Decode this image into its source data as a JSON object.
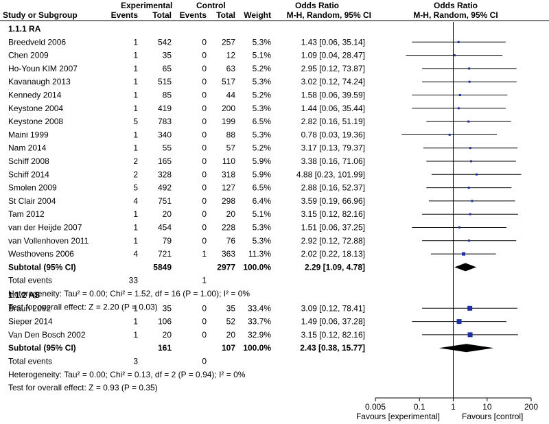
{
  "chart_data": {
    "type": "forest",
    "title": "Odds Ratio",
    "subtitle": "M-H, Random, 95% CI",
    "columns": {
      "study": "Study or Subgroup",
      "experimental": "Experimental",
      "control": "Control",
      "events": "Events",
      "total": "Total",
      "weight": "Weight",
      "odds_ratio": "Odds Ratio",
      "method": "M-H, Random, 95% CI"
    },
    "xscale": "log",
    "xlim": [
      0.005,
      200
    ],
    "ticks": [
      "0.005",
      "0.1",
      "1",
      "10",
      "200"
    ],
    "xlabel_left": "Favours [experimental]",
    "xlabel_right": "Favours [control]",
    "total_events_label": "Total events",
    "subgroups": [
      {
        "name": "1.1.1 RA",
        "studies": [
          {
            "name": "Breedveld 2006",
            "e_events": "1",
            "e_total": "542",
            "c_events": "0",
            "c_total": "257",
            "weight": "5.3%",
            "or_text": "1.43 [0.06, 35.14]",
            "or": 1.43,
            "lo": 0.06,
            "hi": 35.14
          },
          {
            "name": "Chen 2009",
            "e_events": "1",
            "e_total": "35",
            "c_events": "0",
            "c_total": "12",
            "weight": "5.1%",
            "or_text": "1.09 [0.04, 28.47]",
            "or": 1.09,
            "lo": 0.04,
            "hi": 28.47
          },
          {
            "name": "Ho-Youn KIM 2007",
            "e_events": "1",
            "e_total": "65",
            "c_events": "0",
            "c_total": "63",
            "weight": "5.2%",
            "or_text": "2.95 [0.12, 73.87]",
            "or": 2.95,
            "lo": 0.12,
            "hi": 73.87
          },
          {
            "name": "Kavanaugh 2013",
            "e_events": "1",
            "e_total": "515",
            "c_events": "0",
            "c_total": "517",
            "weight": "5.3%",
            "or_text": "3.02 [0.12, 74.24]",
            "or": 3.02,
            "lo": 0.12,
            "hi": 74.24
          },
          {
            "name": "Kennedy 2014",
            "e_events": "1",
            "e_total": "85",
            "c_events": "0",
            "c_total": "44",
            "weight": "5.2%",
            "or_text": "1.58 [0.06, 39.59]",
            "or": 1.58,
            "lo": 0.06,
            "hi": 39.59
          },
          {
            "name": "Keystone 2004",
            "e_events": "1",
            "e_total": "419",
            "c_events": "0",
            "c_total": "200",
            "weight": "5.3%",
            "or_text": "1.44 [0.06, 35.44]",
            "or": 1.44,
            "lo": 0.06,
            "hi": 35.44
          },
          {
            "name": "Keystone 2008",
            "e_events": "5",
            "e_total": "783",
            "c_events": "0",
            "c_total": "199",
            "weight": "6.5%",
            "or_text": "2.82 [0.16, 51.19]",
            "or": 2.82,
            "lo": 0.16,
            "hi": 51.19
          },
          {
            "name": "Maini 1999",
            "e_events": "1",
            "e_total": "340",
            "c_events": "0",
            "c_total": "88",
            "weight": "5.3%",
            "or_text": "0.78 [0.03, 19.36]",
            "or": 0.78,
            "lo": 0.03,
            "hi": 19.36
          },
          {
            "name": "Nam 2014",
            "e_events": "1",
            "e_total": "55",
            "c_events": "0",
            "c_total": "57",
            "weight": "5.2%",
            "or_text": "3.17 [0.13, 79.37]",
            "or": 3.17,
            "lo": 0.13,
            "hi": 79.37
          },
          {
            "name": "Schiff 2008",
            "e_events": "2",
            "e_total": "165",
            "c_events": "0",
            "c_total": "110",
            "weight": "5.9%",
            "or_text": "3.38 [0.16, 71.06]",
            "or": 3.38,
            "lo": 0.16,
            "hi": 71.06
          },
          {
            "name": "Schiff 2014",
            "e_events": "2",
            "e_total": "328",
            "c_events": "0",
            "c_total": "318",
            "weight": "5.9%",
            "or_text": "4.88 [0.23, 101.99]",
            "or": 4.88,
            "lo": 0.23,
            "hi": 101.99
          },
          {
            "name": "Smolen 2009",
            "e_events": "5",
            "e_total": "492",
            "c_events": "0",
            "c_total": "127",
            "weight": "6.5%",
            "or_text": "2.88 [0.16, 52.37]",
            "or": 2.88,
            "lo": 0.16,
            "hi": 52.37
          },
          {
            "name": "St Clair 2004",
            "e_events": "4",
            "e_total": "751",
            "c_events": "0",
            "c_total": "298",
            "weight": "6.4%",
            "or_text": "3.59 [0.19, 66.96]",
            "or": 3.59,
            "lo": 0.19,
            "hi": 66.96
          },
          {
            "name": "Tam 2012",
            "e_events": "1",
            "e_total": "20",
            "c_events": "0",
            "c_total": "20",
            "weight": "5.1%",
            "or_text": "3.15 [0.12, 82.16]",
            "or": 3.15,
            "lo": 0.12,
            "hi": 82.16
          },
          {
            "name": "van der Heijde 2007",
            "e_events": "1",
            "e_total": "454",
            "c_events": "0",
            "c_total": "228",
            "weight": "5.3%",
            "or_text": "1.51 [0.06, 37.25]",
            "or": 1.51,
            "lo": 0.06,
            "hi": 37.25
          },
          {
            "name": "van Vollenhoven 2011",
            "e_events": "1",
            "e_total": "79",
            "c_events": "0",
            "c_total": "76",
            "weight": "5.3%",
            "or_text": "2.92 [0.12, 72.88]",
            "or": 2.92,
            "lo": 0.12,
            "hi": 72.88
          },
          {
            "name": "Westhovens 2006",
            "e_events": "4",
            "e_total": "721",
            "c_events": "1",
            "c_total": "363",
            "weight": "11.3%",
            "or_text": "2.02 [0.22, 18.13]",
            "or": 2.02,
            "lo": 0.22,
            "hi": 18.13
          }
        ],
        "subtotal": {
          "label": "Subtotal (95% CI)",
          "e_total": "5849",
          "c_total": "2977",
          "weight": "100.0%",
          "or_text": "2.29 [1.09, 4.78]",
          "or": 2.29,
          "lo": 1.09,
          "hi": 4.78
        },
        "total_events": {
          "e": "33",
          "c": "1"
        },
        "heterogeneity": "Heterogeneity: Tau² = 0.00; Chi² = 1.52, df = 16 (P = 1.00); I² = 0%",
        "overall": "Test for overall effect: Z = 2.20 (P = 0.03)"
      },
      {
        "name": "1.1.2 AS",
        "studies": [
          {
            "name": "Braun 2002",
            "e_events": "1",
            "e_total": "35",
            "c_events": "0",
            "c_total": "35",
            "weight": "33.4%",
            "or_text": "3.09 [0.12, 78.41]",
            "or": 3.09,
            "lo": 0.12,
            "hi": 78.41
          },
          {
            "name": "Sieper 2014",
            "e_events": "1",
            "e_total": "106",
            "c_events": "0",
            "c_total": "52",
            "weight": "33.7%",
            "or_text": "1.49 [0.06, 37.28]",
            "or": 1.49,
            "lo": 0.06,
            "hi": 37.28
          },
          {
            "name": "Van Den Bosch 2002",
            "e_events": "1",
            "e_total": "20",
            "c_events": "0",
            "c_total": "20",
            "weight": "32.9%",
            "or_text": "3.15 [0.12, 82.16]",
            "or": 3.15,
            "lo": 0.12,
            "hi": 82.16
          }
        ],
        "subtotal": {
          "label": "Subtotal (95% CI)",
          "e_total": "161",
          "c_total": "107",
          "weight": "100.0%",
          "or_text": "2.43 [0.38, 15.77]",
          "or": 2.43,
          "lo": 0.38,
          "hi": 15.77
        },
        "total_events": {
          "e": "3",
          "c": "0"
        },
        "heterogeneity": "Heterogeneity: Tau² = 0.00; Chi² = 0.13, df = 2 (P = 0.94); I² = 0%",
        "overall": "Test for overall effect: Z = 0.93 (P = 0.35)"
      }
    ]
  }
}
